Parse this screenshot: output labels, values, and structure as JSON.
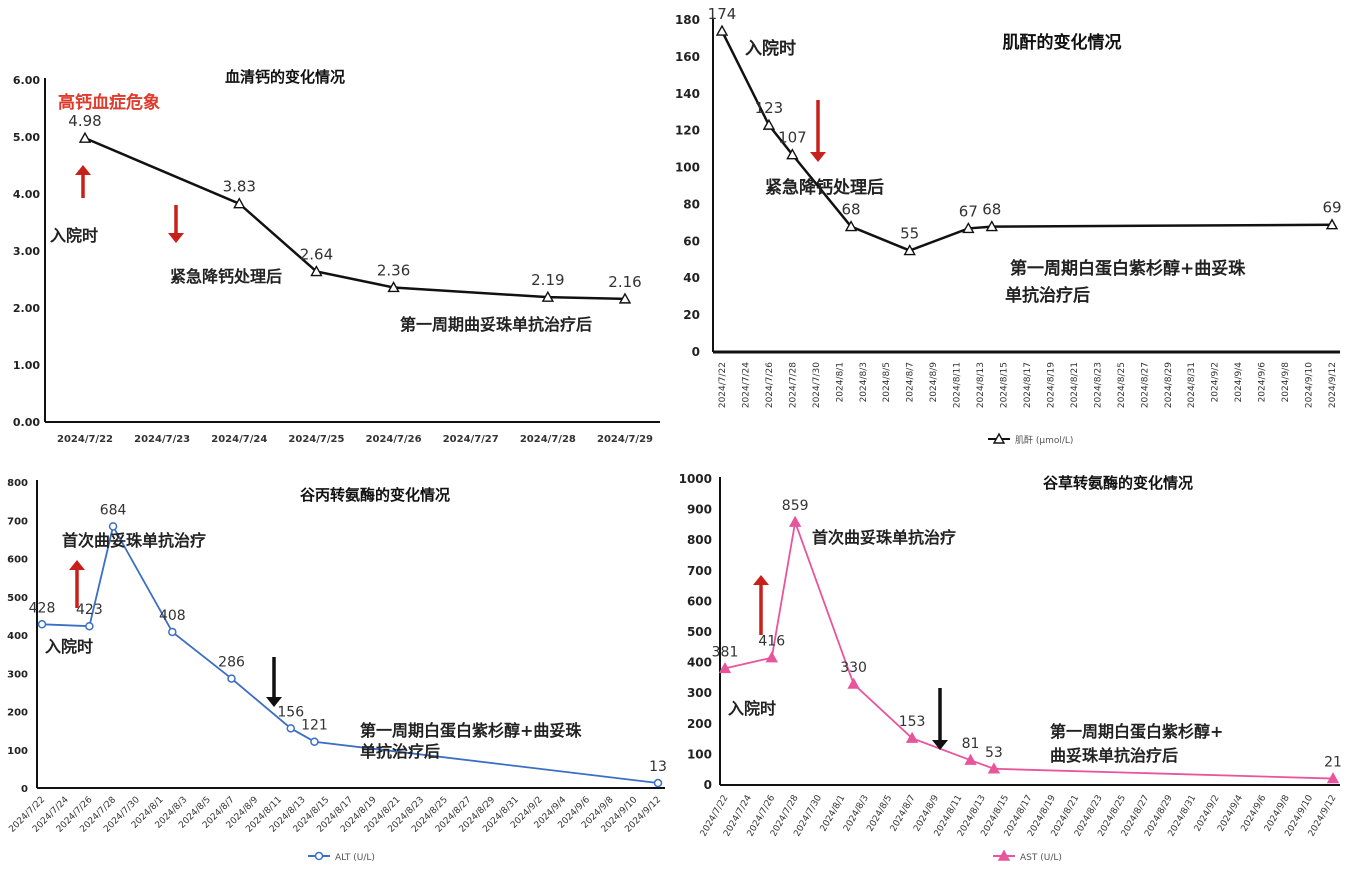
{
  "chart_data": [
    {
      "type": "line",
      "title": "血清钙的变化情况",
      "categories": [
        "2024/7/22",
        "2024/7/23",
        "2024/7/24",
        "2024/7/25",
        "2024/7/26",
        "2024/7/27",
        "2024/7/28",
        "2024/7/29"
      ],
      "series": [
        {
          "x": [
            "2024/7/22",
            "2024/7/24",
            "2024/7/25",
            "2024/7/26",
            "2024/7/28",
            "2024/7/29"
          ],
          "values": [
            4.98,
            3.83,
            2.64,
            2.36,
            2.19,
            2.16
          ],
          "value_labels": [
            "4.98",
            "3.83",
            "2.64",
            "2.36",
            "2.19",
            "2.16"
          ]
        }
      ],
      "yticks": [
        "0.00",
        "1.00",
        "2.00",
        "3.00",
        "4.00",
        "5.00",
        "6.00"
      ],
      "ylim": [
        0,
        6
      ],
      "color": "#111111",
      "marker": "triangle-open",
      "grid": false,
      "legend": "",
      "annotations": [
        "高钙血症危象",
        "入院时",
        "紧急降钙处理后",
        "第一周期曲妥珠单抗治疗后"
      ]
    },
    {
      "type": "line",
      "title": "肌酐的变化情况",
      "categories": [
        "2024/7/22",
        "2024/7/24",
        "2024/7/26",
        "2024/7/28",
        "2024/7/30",
        "2024/8/1",
        "2024/8/3",
        "2024/8/5",
        "2024/8/7",
        "2024/8/9",
        "2024/8/11",
        "2024/8/13",
        "2024/8/15",
        "2024/8/17",
        "2024/8/19",
        "2024/8/21",
        "2024/8/23",
        "2024/8/25",
        "2024/8/27",
        "2024/8/29",
        "2024/8/31",
        "2024/9/2",
        "2024/9/4",
        "2024/9/6",
        "2024/9/8",
        "2024/9/10",
        "2024/9/12"
      ],
      "series": [
        {
          "name": "肌酐 (μmol/L)",
          "x": [
            "2024/7/22",
            "2024/7/26",
            "2024/7/28",
            "2024/8/2",
            "2024/8/7",
            "2024/8/12",
            "2024/8/14",
            "2024/9/12"
          ],
          "values": [
            174,
            123,
            107,
            68,
            55,
            67,
            68,
            69
          ],
          "value_labels": [
            "174",
            "123",
            "107",
            "68",
            "55",
            "67",
            "68",
            "69"
          ]
        }
      ],
      "yticks": [
        "0",
        "20",
        "40",
        "60",
        "80",
        "100",
        "120",
        "140",
        "160",
        "180"
      ],
      "ylim": [
        0,
        180
      ],
      "color": "#111111",
      "marker": "triangle-open",
      "grid": false,
      "legend": "bottom",
      "annotations": [
        "入院时",
        "紧急降钙处理后",
        "第一周期白蛋白紫杉醇+曲妥珠",
        "单抗治疗后"
      ]
    },
    {
      "type": "line",
      "title": "谷丙转氨酶的变化情况",
      "categories": [
        "2024/7/22",
        "2024/7/24",
        "2024/7/26",
        "2024/7/28",
        "2024/7/30",
        "2024/8/1",
        "2024/8/3",
        "2024/8/5",
        "2024/8/7",
        "2024/8/9",
        "2024/8/11",
        "2024/8/13",
        "2024/8/15",
        "2024/8/17",
        "2024/8/19",
        "2024/8/21",
        "2024/8/23",
        "2024/8/25",
        "2024/8/27",
        "2024/8/29",
        "2024/8/31",
        "2024/9/2",
        "2024/9/4",
        "2024/9/6",
        "2024/9/8",
        "2024/9/10",
        "2024/9/12"
      ],
      "series": [
        {
          "name": "ALT (U/L)",
          "x": [
            "2024/7/22",
            "2024/7/26",
            "2024/7/28",
            "2024/8/2",
            "2024/8/7",
            "2024/8/12",
            "2024/8/14",
            "2024/9/12"
          ],
          "values": [
            428,
            423,
            684,
            408,
            286,
            156,
            121,
            13
          ],
          "value_labels": [
            "428",
            "423",
            "684",
            "408",
            "286",
            "156",
            "121",
            "13"
          ]
        }
      ],
      "yticks": [
        "0",
        "100",
        "200",
        "300",
        "400",
        "500",
        "600",
        "700",
        "800"
      ],
      "ylim": [
        0,
        800
      ],
      "color": "#3b6fc4",
      "marker": "circle-open",
      "grid": false,
      "legend": "bottom",
      "annotations": [
        "首次曲妥珠单抗治疗",
        "入院时",
        "第一周期白蛋白紫杉醇+曲妥珠",
        "单抗治疗后"
      ]
    },
    {
      "type": "line",
      "title": "谷草转氨酶的变化情况",
      "categories": [
        "2024/7/22",
        "2024/7/24",
        "2024/7/26",
        "2024/7/28",
        "2024/7/30",
        "2024/8/1",
        "2024/8/3",
        "2024/8/5",
        "2024/8/7",
        "2024/8/9",
        "2024/8/11",
        "2024/8/13",
        "2024/8/15",
        "2024/8/17",
        "2024/8/19",
        "2024/8/21",
        "2024/8/23",
        "2024/8/25",
        "2024/8/27",
        "2024/8/29",
        "2024/8/31",
        "2024/9/2",
        "2024/9/4",
        "2024/9/6",
        "2024/9/8",
        "2024/9/10",
        "2024/9/12"
      ],
      "series": [
        {
          "name": "AST (U/L)",
          "x": [
            "2024/7/22",
            "2024/7/26",
            "2024/7/28",
            "2024/8/2",
            "2024/8/7",
            "2024/8/12",
            "2024/8/14",
            "2024/9/12"
          ],
          "values": [
            381,
            416,
            859,
            330,
            153,
            81,
            53,
            21
          ],
          "value_labels": [
            "381",
            "416",
            "859",
            "330",
            "153",
            "81",
            "53",
            "21"
          ]
        }
      ],
      "yticks": [
        "0",
        "100",
        "200",
        "300",
        "400",
        "500",
        "600",
        "700",
        "800",
        "900",
        "1000"
      ],
      "ylim": [
        0,
        1000
      ],
      "color": "#e8559c",
      "marker": "triangle-filled",
      "grid": false,
      "legend": "bottom",
      "annotations": [
        "首次曲妥珠单抗治疗",
        "入院时",
        "第一周期白蛋白紫杉醇+",
        "曲妥珠单抗治疗后"
      ]
    }
  ],
  "colors": {
    "arrow_red": "#c8211b",
    "arrow_black": "#111111",
    "annotation_red": "#e03a2c"
  }
}
